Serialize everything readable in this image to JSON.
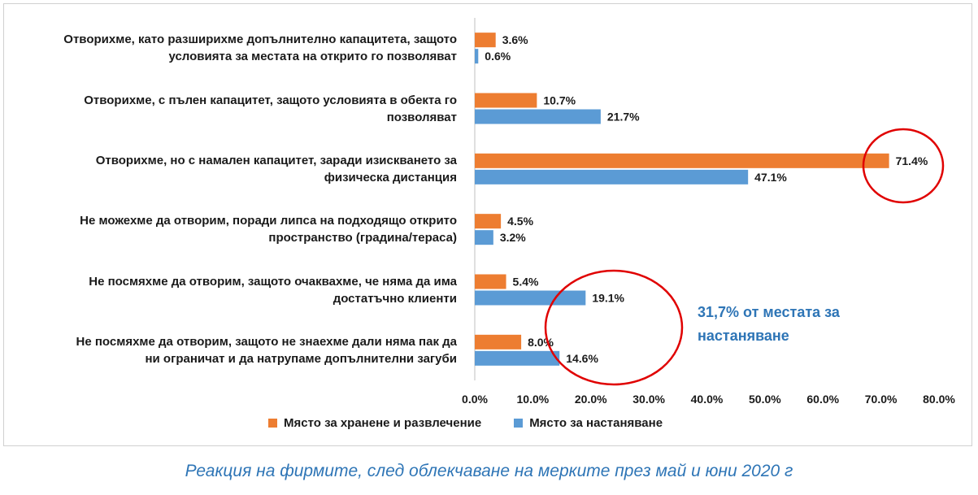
{
  "chart_data": {
    "type": "bar",
    "orientation": "horizontal",
    "categories": [
      [
        "Отворихме, като разширихме допълнително капацитета, защото",
        "условията за местата на открито го позволяват"
      ],
      [
        "Отворихме, с пълен капацитет, защото условията в обекта го",
        "позволяват"
      ],
      [
        "Отворихме, но с намален капацитет, заради изискването за",
        "физическа дистанция"
      ],
      [
        "Не можехме да отворим, поради липса на подходящо открито",
        "пространство (градина/тераса)"
      ],
      [
        "Не посмяхме да отворим, защото очаквахме, че няма да има",
        "достатъчно клиенти"
      ],
      [
        "Не посмяхме да отворим, защото не знаехме дали няма пак да",
        "ни ограничат и да натрупаме допълнителни загуби"
      ]
    ],
    "series": [
      {
        "name": "Място за хранене и развлечение",
        "color": "#ed7d31",
        "values": [
          3.6,
          10.7,
          71.4,
          4.5,
          5.4,
          8.0
        ],
        "labels": [
          "3.6%",
          "10.7%",
          "71.4%",
          "4.5%",
          "5.4%",
          "8.0%"
        ]
      },
      {
        "name": "Място за настаняване",
        "color": "#5b9bd5",
        "values": [
          0.6,
          21.7,
          47.1,
          3.2,
          19.1,
          14.6
        ],
        "labels": [
          "0.6%",
          "21.7%",
          "47.1%",
          "3.2%",
          "19.1%",
          "14.6%"
        ]
      }
    ],
    "xlim": [
      0,
      80
    ],
    "ticks": [
      "0.0%",
      "10.0%",
      "20.0%",
      "30.0%",
      "40.0%",
      "50.0%",
      "60.0%",
      "70.0%",
      "80.0%"
    ],
    "legend_position": "bottom",
    "grid": false
  },
  "annotation": {
    "line1": "31,7% от местата за",
    "line2": "настаняване",
    "circle_color": "#e00000"
  },
  "caption": "Реакция на фирмите, след облекчаване на мерките през май и юни 2020 г"
}
